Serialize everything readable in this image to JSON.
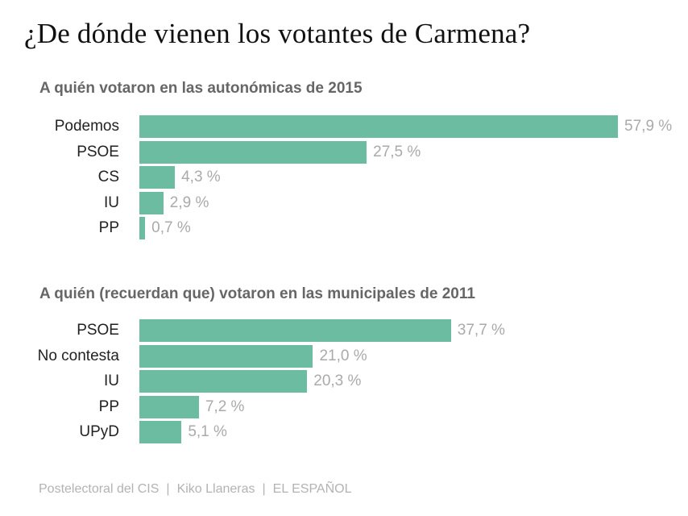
{
  "title": "¿De dónde vienen los votantes de Carmena?",
  "colors": {
    "bar": "#6cbca1",
    "value_text": "#aaaaaa",
    "subtitle": "#666666"
  },
  "chart_data": [
    {
      "type": "bar",
      "orientation": "horizontal",
      "title": "A quién votaron en las autonómicas de 2015",
      "categories": [
        "Podemos",
        "PSOE",
        "CS",
        "IU",
        "PP"
      ],
      "values": [
        57.9,
        27.5,
        4.3,
        2.9,
        0.7
      ],
      "labels": [
        "57,9 %",
        "27,5 %",
        "4,3 %",
        "2,9 %",
        "0,7 %"
      ],
      "unit": "%",
      "grid": false
    },
    {
      "type": "bar",
      "orientation": "horizontal",
      "title": "A quién (recuerdan que) votaron en las municipales de 2011",
      "categories": [
        "PSOE",
        "No contesta",
        "IU",
        "PP",
        "UPyD"
      ],
      "values": [
        37.7,
        21.0,
        20.3,
        7.2,
        5.1
      ],
      "labels": [
        "37,7 %",
        "21,0 %",
        "20,3 %",
        "7,2 %",
        "5,1 %"
      ],
      "unit": "%",
      "grid": false
    }
  ],
  "footer": {
    "source": "Postelectoral del CIS",
    "author": "Kiko Llaneras",
    "outlet": "EL ESPAÑOL",
    "separator": "|"
  }
}
